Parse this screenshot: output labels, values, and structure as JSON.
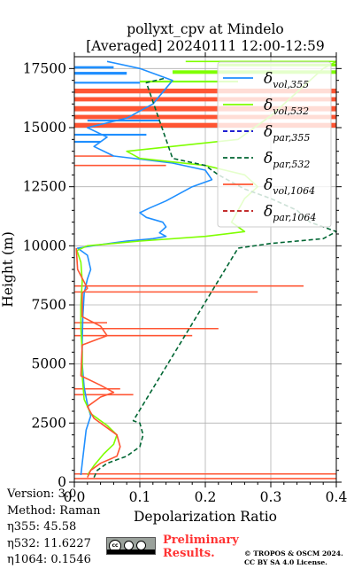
{
  "chart_data": {
    "type": "line",
    "title_line1": "pollyxt_cpv at Mindelo",
    "title_line2": "[Averaged] 20240111 12:00-12:59",
    "xlabel": "Depolarization Ratio",
    "ylabel": "Height (m)",
    "xlim": [
      0.0,
      0.4
    ],
    "ylim": [
      0,
      18000
    ],
    "x_ticks": [
      "0.0",
      "0.1",
      "0.2",
      "0.3",
      "0.4"
    ],
    "y_ticks": [
      "0",
      "2500",
      "5000",
      "7500",
      "10000",
      "12500",
      "15000",
      "17500"
    ],
    "grid": true,
    "legend_position": "top-right",
    "series": [
      {
        "name": "vol,355",
        "color": "#1f8fff",
        "dash": "solid",
        "points": [
          [
            0.01,
            300
          ],
          [
            0.012,
            800
          ],
          [
            0.015,
            1500
          ],
          [
            0.018,
            2200
          ],
          [
            0.025,
            2800
          ],
          [
            0.02,
            3300
          ],
          [
            0.015,
            4000
          ],
          [
            0.012,
            5000
          ],
          [
            0.012,
            6000
          ],
          [
            0.013,
            7000
          ],
          [
            0.015,
            8000
          ],
          [
            0.02,
            8600
          ],
          [
            0.025,
            9000
          ],
          [
            0.02,
            9600
          ],
          [
            0.005,
            9900
          ],
          [
            0.04,
            10050
          ],
          [
            0.08,
            10200
          ],
          [
            0.12,
            10300
          ],
          [
            0.14,
            10400
          ],
          [
            0.13,
            10550
          ],
          [
            0.14,
            10800
          ],
          [
            0.135,
            11000
          ],
          [
            0.11,
            11200
          ],
          [
            0.1,
            11400
          ],
          [
            0.115,
            11600
          ],
          [
            0.14,
            11900
          ],
          [
            0.16,
            12200
          ],
          [
            0.18,
            12500
          ],
          [
            0.21,
            12800
          ],
          [
            0.2,
            13200
          ],
          [
            0.15,
            13500
          ],
          [
            0.06,
            13800
          ],
          [
            0.03,
            14200
          ],
          [
            0.05,
            14600
          ],
          [
            0.02,
            15000
          ],
          [
            0.08,
            15400
          ],
          [
            0.12,
            16000
          ],
          [
            0.15,
            17000
          ],
          [
            0.1,
            17500
          ],
          [
            0.05,
            17800
          ]
        ]
      },
      {
        "name": "vol,532",
        "color": "#7fff00",
        "dash": "solid",
        "points": [
          [
            0.02,
            300
          ],
          [
            0.03,
            700
          ],
          [
            0.045,
            1200
          ],
          [
            0.06,
            1600
          ],
          [
            0.065,
            2000
          ],
          [
            0.05,
            2400
          ],
          [
            0.025,
            2900
          ],
          [
            0.015,
            3500
          ],
          [
            0.012,
            4500
          ],
          [
            0.012,
            5500
          ],
          [
            0.01,
            6500
          ],
          [
            0.01,
            7500
          ],
          [
            0.012,
            8500
          ],
          [
            0.01,
            9300
          ],
          [
            0.004,
            9800
          ],
          [
            0.02,
            10000
          ],
          [
            0.1,
            10200
          ],
          [
            0.2,
            10400
          ],
          [
            0.26,
            10600
          ],
          [
            0.24,
            11000
          ],
          [
            0.25,
            11500
          ],
          [
            0.26,
            12000
          ],
          [
            0.28,
            12500
          ],
          [
            0.26,
            13000
          ],
          [
            0.2,
            13400
          ],
          [
            0.1,
            13700
          ],
          [
            0.08,
            14000
          ],
          [
            0.25,
            14500
          ],
          [
            0.3,
            15500
          ],
          [
            0.34,
            16500
          ],
          [
            0.38,
            17500
          ],
          [
            0.4,
            17800
          ]
        ]
      },
      {
        "name": "par,355",
        "color": "#0000cc",
        "dash": "dashed",
        "points": []
      },
      {
        "name": "par,532",
        "color": "#006633",
        "dash": "dashed",
        "points": [
          [
            0.03,
            200
          ],
          [
            0.035,
            500
          ],
          [
            0.05,
            800
          ],
          [
            0.08,
            1100
          ],
          [
            0.1,
            1500
          ],
          [
            0.105,
            2000
          ],
          [
            0.1,
            2500
          ],
          [
            0.09,
            2600
          ],
          [
            0.25,
            9900
          ],
          [
            0.3,
            10100
          ],
          [
            0.38,
            10300
          ],
          [
            0.4,
            10600
          ],
          [
            0.36,
            11000
          ],
          [
            0.34,
            11500
          ],
          [
            0.3,
            12000
          ],
          [
            0.26,
            12400
          ],
          [
            0.22,
            13000
          ],
          [
            0.2,
            13400
          ],
          [
            0.15,
            13700
          ],
          [
            0.11,
            16900
          ],
          [
            0.14,
            17100
          ]
        ]
      },
      {
        "name": "vol,1064",
        "color": "#ff5533",
        "dash": "solid",
        "points": [
          [
            0.02,
            200
          ],
          [
            0.025,
            500
          ],
          [
            0.04,
            800
          ],
          [
            0.065,
            1100
          ],
          [
            0.07,
            1500
          ],
          [
            0.065,
            2000
          ],
          [
            0.05,
            2300
          ],
          [
            0.03,
            2700
          ],
          [
            0.02,
            3200
          ],
          [
            0.04,
            3600
          ],
          [
            0.06,
            3800
          ],
          [
            0.04,
            4100
          ],
          [
            0.01,
            4500
          ],
          [
            0.012,
            5800
          ],
          [
            0.05,
            6200
          ],
          [
            0.04,
            6600
          ],
          [
            0.012,
            7000
          ],
          [
            0.012,
            8000
          ],
          [
            0.02,
            8200
          ],
          [
            0.005,
            9000
          ],
          [
            0.003,
            9900
          ]
        ]
      },
      {
        "name": "par,1064",
        "color": "#bb1111",
        "dash": "dashed",
        "points": []
      }
    ],
    "bands_1064": [
      {
        "y": 150,
        "x0": 0.0,
        "x1": 0.4,
        "h": 60
      },
      {
        "y": 350,
        "x0": 0.0,
        "x1": 0.4,
        "h": 50
      },
      {
        "y": 3700,
        "x0": 0.0,
        "x1": 0.09,
        "h": 60
      },
      {
        "y": 3950,
        "x0": 0.0,
        "x1": 0.07,
        "h": 50
      },
      {
        "y": 6200,
        "x0": 0.0,
        "x1": 0.18,
        "h": 60
      },
      {
        "y": 6500,
        "x0": 0.0,
        "x1": 0.22,
        "h": 50
      },
      {
        "y": 6750,
        "x0": 0.0,
        "x1": 0.05,
        "h": 50
      },
      {
        "y": 8050,
        "x0": 0.0,
        "x1": 0.28,
        "h": 50
      },
      {
        "y": 8300,
        "x0": 0.0,
        "x1": 0.35,
        "h": 60
      },
      {
        "y": 15100,
        "x0": 0.0,
        "x1": 0.4,
        "h": 200
      },
      {
        "y": 15450,
        "x0": 0.0,
        "x1": 0.4,
        "h": 180
      },
      {
        "y": 15800,
        "x0": 0.0,
        "x1": 0.4,
        "h": 220
      },
      {
        "y": 16200,
        "x0": 0.0,
        "x1": 0.4,
        "h": 180
      },
      {
        "y": 16550,
        "x0": 0.0,
        "x1": 0.4,
        "h": 200
      },
      {
        "y": 13400,
        "x0": 0.0,
        "x1": 0.14,
        "h": 60
      },
      {
        "y": 13800,
        "x0": 0.0,
        "x1": 0.06,
        "h": 50
      }
    ],
    "bands_532": [
      {
        "y": 17350,
        "x0": 0.15,
        "x1": 0.4,
        "h": 150
      },
      {
        "y": 17650,
        "x0": 0.22,
        "x1": 0.4,
        "h": 120
      },
      {
        "y": 16950,
        "x0": 0.1,
        "x1": 0.25,
        "h": 80
      },
      {
        "y": 17800,
        "x0": 0.17,
        "x1": 0.4,
        "h": 60
      }
    ],
    "bands_355": [
      {
        "y": 17300,
        "x0": 0.0,
        "x1": 0.08,
        "h": 120
      },
      {
        "y": 17550,
        "x0": 0.0,
        "x1": 0.06,
        "h": 100
      },
      {
        "y": 16900,
        "x0": 0.0,
        "x1": 0.1,
        "h": 80
      },
      {
        "y": 15300,
        "x0": 0.02,
        "x1": 0.13,
        "h": 80
      },
      {
        "y": 14700,
        "x0": 0.0,
        "x1": 0.11,
        "h": 80
      },
      {
        "y": 14400,
        "x0": 0.0,
        "x1": 0.04,
        "h": 80
      }
    ]
  },
  "legend": [
    {
      "sym": "δ",
      "sub": "vol,355",
      "color": "#1f8fff",
      "dash": "solid"
    },
    {
      "sym": "δ",
      "sub": "vol,532",
      "color": "#7fff00",
      "dash": "solid"
    },
    {
      "sym": "δ",
      "sub": "par,355",
      "color": "#0000cc",
      "dash": "dashed"
    },
    {
      "sym": "δ",
      "sub": "par,532",
      "color": "#006633",
      "dash": "dashed"
    },
    {
      "sym": "δ",
      "sub": "vol,1064",
      "color": "#ff5533",
      "dash": "solid"
    },
    {
      "sym": "δ",
      "sub": "par,1064",
      "color": "#bb1111",
      "dash": "dashed"
    }
  ],
  "meta": {
    "version": "Version: 3.0",
    "method": "Method: Raman",
    "eta355": "η355:  45.58",
    "eta532": "η532: 11.6227",
    "eta1064": "η1064: 0.1546"
  },
  "footer": {
    "prelim_line1": "Preliminary",
    "prelim_line2": "Results.",
    "copyright_line1": "© TROPOS & OSCM 2024.",
    "copyright_line2": "CC BY SA 4.0 License.",
    "cc_badge_text": "cc"
  }
}
